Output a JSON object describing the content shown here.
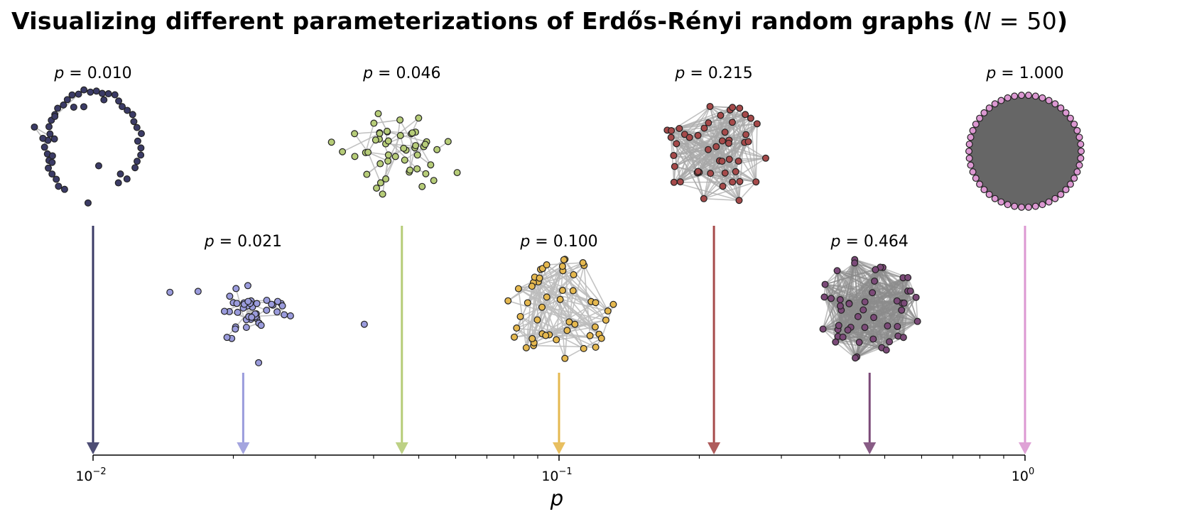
{
  "chart_data": {
    "type": "scatter",
    "title_text": "Visualizing different parameterizations of Erdős-Rényi random graphs (",
    "title_symbol": "N",
    "title_equals": " = ",
    "title_value": "50",
    "title_close": ")",
    "xlabel": "p",
    "xscale": "log",
    "xlim": [
      0.01,
      1.0
    ],
    "x_ticks": [
      {
        "base": "10",
        "exp": "−2",
        "value": 0.01
      },
      {
        "base": "10",
        "exp": "−1",
        "value": 0.1
      },
      {
        "base": "10",
        "exp": "0",
        "value": 1.0
      }
    ],
    "grid": false,
    "n_nodes": 50,
    "graphs": [
      {
        "p": 0.01,
        "label": "p = 0.010",
        "color": "#3b3b66",
        "edge_color": "#bdbdbd",
        "row": "top"
      },
      {
        "p": 0.021,
        "label": "p = 0.021",
        "color": "#9a9bdc",
        "edge_color": "#bdbdbd",
        "row": "bottom"
      },
      {
        "p": 0.046,
        "label": "p = 0.046",
        "color": "#b6cc78",
        "edge_color": "#bdbdbd",
        "row": "top"
      },
      {
        "p": 0.1,
        "label": "p = 0.100",
        "color": "#e5b84f",
        "edge_color": "#bdbdbd",
        "row": "bottom"
      },
      {
        "p": 0.215,
        "label": "p = 0.215",
        "color": "#a64a4a",
        "edge_color": "#a8a8a8",
        "row": "top"
      },
      {
        "p": 0.464,
        "label": "p = 0.464",
        "color": "#7b4a78",
        "edge_color": "#8c8c8c",
        "row": "bottom"
      },
      {
        "p": 1.0,
        "label": "p = 1.000",
        "color": "#dc98d2",
        "edge_color": "#6b6b6b",
        "row": "top"
      }
    ]
  }
}
